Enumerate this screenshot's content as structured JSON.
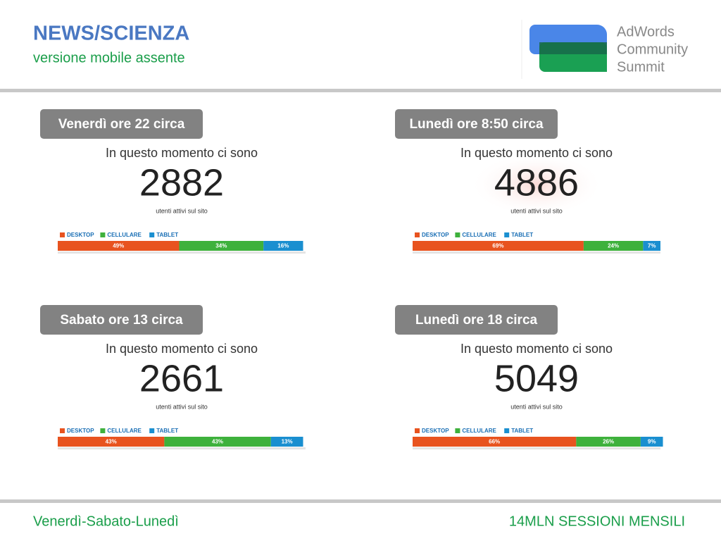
{
  "header": {
    "title": "NEWS/SCIENZA",
    "subtitle": "versione mobile assente"
  },
  "logo": {
    "lines": [
      "AdWords",
      "Community",
      "Summit"
    ]
  },
  "legend": [
    {
      "name": "DESKTOP",
      "color": "#e8531f"
    },
    {
      "name": "CELLULARE",
      "color": "#3eb13c"
    },
    {
      "name": "TABLET",
      "color": "#1a8fd0"
    }
  ],
  "panels": [
    {
      "label": "Venerdì ore 22 circa",
      "headline": "In questo momento ci sono",
      "count": 2882,
      "caption": "utenti attivi sul sito",
      "segments": [
        {
          "value": 49,
          "label": "49%"
        },
        {
          "value": 34,
          "label": "34%"
        },
        {
          "value": 16,
          "label": "16%"
        }
      ]
    },
    {
      "label": "Lunedì ore 8:50 circa",
      "headline": "In questo momento ci sono",
      "count": 4886,
      "caption": "utenti attivi sul sito",
      "segments": [
        {
          "value": 69,
          "label": "69%"
        },
        {
          "value": 24,
          "label": "24%"
        },
        {
          "value": 7,
          "label": "7%"
        }
      ]
    },
    {
      "label": "Sabato ore 13 circa",
      "headline": "In questo momento ci sono",
      "count": 2661,
      "caption": "utenti attivi sul sito",
      "segments": [
        {
          "value": 43,
          "label": "43%"
        },
        {
          "value": 43,
          "label": "43%"
        },
        {
          "value": 13,
          "label": "13%"
        }
      ]
    },
    {
      "label": "Lunedì ore 18 circa",
      "headline": "In questo momento ci sono",
      "count": 5049,
      "caption": "utenti attivi sul sito",
      "segments": [
        {
          "value": 66,
          "label": "66%"
        },
        {
          "value": 26,
          "label": "26%"
        },
        {
          "value": 9,
          "label": "9%"
        }
      ]
    }
  ],
  "footer": {
    "left": "Venerdì-Sabato-Lunedì",
    "right": "14MLN SESSIONI MENSILI"
  }
}
